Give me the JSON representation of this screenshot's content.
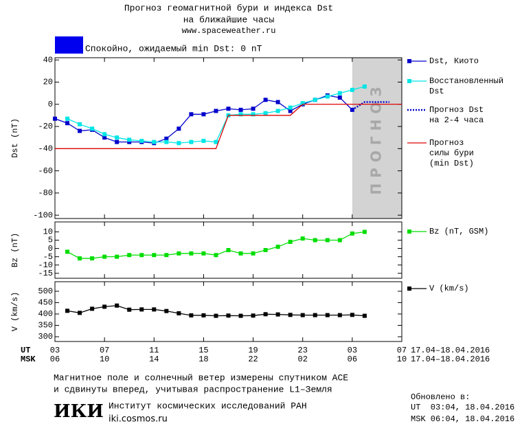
{
  "header": {
    "title": "Прогноз геомагнитной бури и индекса Dst",
    "subtitle": "на ближайшие часы",
    "url": "www.spaceweather.ru"
  },
  "status": {
    "text": "Спокойно, ожидаемый min Dst: 0 nT",
    "color": "#0000ee"
  },
  "x_axis": {
    "xlim": [
      0,
      28
    ],
    "ut_label": "UT",
    "msk_label": "MSK",
    "ut_ticks": [
      {
        "value": 0,
        "label": "03"
      },
      {
        "value": 4,
        "label": "07"
      },
      {
        "value": 8,
        "label": "11"
      },
      {
        "value": 12,
        "label": "15"
      },
      {
        "value": 16,
        "label": "19"
      },
      {
        "value": 20,
        "label": "23"
      },
      {
        "value": 24,
        "label": "03"
      },
      {
        "value": 28,
        "label": "07"
      }
    ],
    "msk_ticks": [
      {
        "value": 0,
        "label": "06"
      },
      {
        "value": 4,
        "label": "10"
      },
      {
        "value": 8,
        "label": "14"
      },
      {
        "value": 12,
        "label": "18"
      },
      {
        "value": 16,
        "label": "22"
      },
      {
        "value": 20,
        "label": "02"
      },
      {
        "value": 24,
        "label": "06"
      },
      {
        "value": 28,
        "label": "10"
      }
    ],
    "ut_range": "17.04–18.04.2016",
    "msk_range": "17.04–18.04.2016"
  },
  "chart_data": [
    {
      "type": "line",
      "ylabel": "Dst (nT)",
      "xlim": [
        0,
        28
      ],
      "ylim": [
        -103,
        42
      ],
      "yticks": [
        40,
        20,
        0,
        -20,
        -40,
        -60,
        -80,
        -100
      ],
      "forecast": {
        "x": [
          24,
          28
        ],
        "label": "ПРОГНОЗ",
        "color": "#d3d3d3"
      },
      "series": [
        {
          "name": "Dst, Киото",
          "color": "#0000cc",
          "marker": "square",
          "dash": false,
          "x": [
            0,
            1,
            2,
            3,
            4,
            5,
            6,
            7,
            8,
            9,
            10,
            11,
            12,
            13,
            14,
            15,
            16,
            17,
            18,
            19,
            20,
            21,
            22,
            23,
            24
          ],
          "values": [
            -13,
            -17,
            -24,
            -23,
            -30,
            -34,
            -34,
            -34,
            -35,
            -31,
            -22,
            -9,
            -9,
            -6,
            -4,
            -5,
            -4,
            4,
            2,
            -6,
            0,
            4,
            8,
            6,
            -5
          ]
        },
        {
          "name": "Восстановленный\nDst",
          "color": "#00e5e5",
          "marker": "square",
          "dash": false,
          "x": [
            1,
            2,
            3,
            4,
            5,
            6,
            7,
            8,
            9,
            10,
            11,
            12,
            13,
            14,
            15,
            16,
            17,
            18,
            19,
            20,
            21,
            22,
            23,
            24,
            25
          ],
          "values": [
            -13,
            -18,
            -22,
            -27,
            -30,
            -32,
            -33,
            -34,
            -34,
            -35,
            -34,
            -33,
            -34,
            -10,
            -9,
            -9,
            -8,
            -6,
            -3,
            1,
            4,
            7,
            10,
            13,
            16
          ]
        },
        {
          "name": "Прогноз Dst\nна 2-4 часа",
          "color": "#0000cc",
          "marker": "none",
          "dash": true,
          "x": [
            24,
            25,
            27
          ],
          "values": [
            -5,
            2,
            2
          ]
        },
        {
          "name": "Прогноз\nсилы бури\n(min Dst)",
          "color": "#dd0000",
          "marker": "none",
          "dash": false,
          "x": [
            0,
            13,
            14,
            19,
            20,
            28
          ],
          "values": [
            -40,
            -40,
            -10,
            -10,
            0,
            0
          ]
        }
      ]
    },
    {
      "type": "line",
      "ylabel": "Bz (nT)",
      "xlim": [
        0,
        28
      ],
      "ylim": [
        -18,
        16
      ],
      "yticks": [
        10,
        5,
        0,
        -5,
        -10,
        -15
      ],
      "series": [
        {
          "name": "Bz (nT, GSM)",
          "color": "#00dd00",
          "marker": "square",
          "dash": false,
          "x": [
            1,
            2,
            3,
            4,
            5,
            6,
            7,
            8,
            9,
            10,
            11,
            12,
            13,
            14,
            15,
            16,
            17,
            18,
            19,
            20,
            21,
            22,
            23,
            24,
            25
          ],
          "values": [
            -2,
            -6,
            -6,
            -5,
            -5,
            -4,
            -4,
            -4,
            -4,
            -3,
            -3,
            -3,
            -4,
            -1,
            -3,
            -3,
            -1,
            1,
            4,
            6,
            5,
            5,
            5,
            9,
            10
          ]
        }
      ]
    },
    {
      "type": "line",
      "ylabel": "V (km/s)",
      "xlim": [
        0,
        28
      ],
      "ylim": [
        279,
        542
      ],
      "yticks": [
        500,
        450,
        400,
        350,
        300
      ],
      "series": [
        {
          "name": "V (km/s)",
          "color": "#000000",
          "marker": "square",
          "dash": false,
          "x": [
            1,
            2,
            3,
            4,
            5,
            6,
            7,
            8,
            9,
            10,
            11,
            12,
            13,
            14,
            15,
            16,
            17,
            18,
            19,
            20,
            21,
            22,
            23,
            24,
            25
          ],
          "values": [
            414,
            405,
            423,
            432,
            437,
            419,
            420,
            420,
            413,
            403,
            394,
            394,
            392,
            393,
            392,
            393,
            399,
            398,
            396,
            395,
            395,
            395,
            395,
            396,
            392
          ]
        }
      ]
    }
  ],
  "footer": {
    "note_line1": "Магнитное поле и солнечный ветер измерены спутником ACE",
    "note_line2": "и сдвинуты вперед, учитывая распространение L1–Земля",
    "logo": "ИКИ",
    "institute": "Институт космических исследований РАН",
    "site": "iki.cosmos.ru",
    "updated_label": "Обновлено в:",
    "updated_ut": "UT  03:04, 18.04.2016",
    "updated_msk": "MSK 06:04, 18.04.2016"
  }
}
